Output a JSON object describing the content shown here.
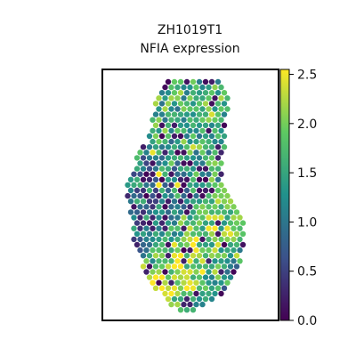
{
  "chart_data": {
    "type": "scatter",
    "subtype": "spatial-hex-spot-map",
    "title": "ZH1019T1",
    "subtitle": "NFIA expression",
    "xlabel": "",
    "ylabel": "",
    "axes_ticks_visible": false,
    "grid": false,
    "colormap": "viridis",
    "colormap_stops": [
      "#440154",
      "#3b528b",
      "#21918c",
      "#5ec962",
      "#fde725"
    ],
    "colorbar": {
      "placement": "right",
      "min": 0.0,
      "max": 2.55,
      "ticks": [
        0.0,
        0.5,
        1.0,
        1.5,
        2.0,
        2.5
      ],
      "tick_labels": [
        "0.0",
        "0.5",
        "1.0",
        "1.5",
        "2.0",
        "2.5"
      ]
    },
    "tissue_shape_rows": [
      [
        0.0,
        0.33,
        0.69
      ],
      [
        0.03,
        0.3,
        0.72
      ],
      [
        0.06,
        0.28,
        0.73
      ],
      [
        0.1,
        0.27,
        0.73
      ],
      [
        0.14,
        0.26,
        0.73
      ],
      [
        0.18,
        0.25,
        0.72
      ],
      [
        0.22,
        0.24,
        0.72
      ],
      [
        0.26,
        0.22,
        0.72
      ],
      [
        0.3,
        0.18,
        0.71
      ],
      [
        0.34,
        0.15,
        0.7
      ],
      [
        0.38,
        0.12,
        0.7
      ],
      [
        0.42,
        0.1,
        0.7
      ],
      [
        0.46,
        0.09,
        0.72
      ],
      [
        0.5,
        0.09,
        0.75
      ],
      [
        0.54,
        0.1,
        0.8
      ],
      [
        0.58,
        0.11,
        0.83
      ],
      [
        0.62,
        0.12,
        0.84
      ],
      [
        0.66,
        0.12,
        0.84
      ],
      [
        0.7,
        0.13,
        0.83
      ],
      [
        0.74,
        0.15,
        0.82
      ],
      [
        0.78,
        0.18,
        0.81
      ],
      [
        0.82,
        0.2,
        0.8
      ],
      [
        0.86,
        0.23,
        0.78
      ],
      [
        0.9,
        0.27,
        0.73
      ],
      [
        0.94,
        0.32,
        0.66
      ],
      [
        0.97,
        0.37,
        0.6
      ],
      [
        1.0,
        0.42,
        0.52
      ]
    ],
    "expression_hotspots": [
      {
        "x": 0.5,
        "y": 0.78,
        "value": 2.3
      },
      {
        "x": 0.7,
        "y": 0.83,
        "value": 2.1
      },
      {
        "x": 0.42,
        "y": 0.3,
        "value": 1.6
      },
      {
        "x": 0.3,
        "y": 0.5,
        "value": 0.9
      },
      {
        "x": 0.75,
        "y": 0.95,
        "value": 0.2
      }
    ]
  }
}
